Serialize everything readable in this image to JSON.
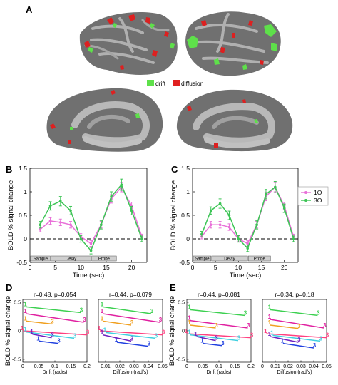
{
  "panel_labels": {
    "A": "A",
    "B": "B",
    "C": "C",
    "D": "D",
    "E": "E"
  },
  "brain_legend": {
    "drift_label": "drift",
    "diffusion_label": "diffusion",
    "drift_color": "#5ee04a",
    "diffusion_color": "#e02020"
  },
  "colors": {
    "load_1O": "#e870d8",
    "load_3O": "#3cc455",
    "cortex_dark": "#6e6e6e",
    "cortex_light": "#b4b4b4"
  },
  "timecourse": {
    "ylabel": "BOLD % signal change",
    "xlabel": "Time (sec)",
    "yticks": [
      "1.5",
      "1",
      "0.5",
      "0",
      "-0.5"
    ],
    "xticks": [
      "0",
      "5",
      "10",
      "15",
      "20"
    ],
    "segments": [
      "Sample",
      "Delay",
      "Probe"
    ]
  },
  "legend": {
    "series_1O": "1O",
    "series_3O": "3O"
  },
  "scatter": {
    "ylabel": "BOLD % signal change",
    "drift_xlabel": "Drift (rad/s)",
    "diffusion_xlabel": "Diffusion (rad/s)",
    "yticks": [
      "0.5",
      "0",
      "-0.5"
    ],
    "drift_xticks": [
      "0",
      "0.05",
      "0.1",
      "0.15",
      "0.2"
    ],
    "diffusion_xticks": [
      "0.01",
      "0.02",
      "0.03",
      "0.04",
      "0.05"
    ],
    "diffusion_xticks_e": [
      "0",
      "0.01",
      "0.02",
      "0.03",
      "0.04",
      "0.05"
    ],
    "D_drift_stat": "r=0.48, p=0.054",
    "D_diff_stat": "r=0.44, p=0.079",
    "E_drift_stat": "r=0.44, p=0.081",
    "E_diff_stat": "r=0.34, p=0.18"
  },
  "chart_data": [
    {
      "type": "line",
      "panel": "B",
      "xlabel": "Time (sec)",
      "ylabel": "BOLD % signal change",
      "xlim": [
        0,
        23
      ],
      "ylim": [
        -0.5,
        1.5
      ],
      "x": [
        2,
        4,
        6,
        8,
        10,
        12,
        14,
        16,
        18,
        20,
        22
      ],
      "series": [
        {
          "name": "1O",
          "values": [
            0.2,
            0.38,
            0.35,
            0.3,
            0.05,
            -0.1,
            0.3,
            0.85,
            1.1,
            0.7,
            0.05
          ],
          "err": [
            0.05,
            0.07,
            0.07,
            0.07,
            0.06,
            0.06,
            0.07,
            0.09,
            0.1,
            0.08,
            0.05
          ]
        },
        {
          "name": "3O",
          "values": [
            0.3,
            0.7,
            0.8,
            0.6,
            0.0,
            -0.25,
            0.3,
            0.9,
            1.15,
            0.6,
            0.0
          ],
          "err": [
            0.07,
            0.09,
            0.1,
            0.09,
            0.07,
            0.07,
            0.09,
            0.1,
            0.12,
            0.09,
            0.06
          ]
        }
      ]
    },
    {
      "type": "line",
      "panel": "C",
      "xlabel": "Time (sec)",
      "ylabel": "BOLD % signal change",
      "xlim": [
        0,
        23
      ],
      "ylim": [
        -0.5,
        1.5
      ],
      "x": [
        2,
        4,
        6,
        8,
        10,
        12,
        14,
        16,
        18,
        20,
        22
      ],
      "series": [
        {
          "name": "1O",
          "values": [
            0.05,
            0.3,
            0.3,
            0.25,
            0.0,
            -0.1,
            0.3,
            0.9,
            1.1,
            0.7,
            0.05
          ],
          "err": [
            0.05,
            0.07,
            0.07,
            0.07,
            0.06,
            0.06,
            0.07,
            0.09,
            0.1,
            0.08,
            0.05
          ]
        },
        {
          "name": "3O",
          "values": [
            0.1,
            0.6,
            0.75,
            0.5,
            0.0,
            -0.2,
            0.3,
            0.95,
            1.1,
            0.65,
            0.0
          ],
          "err": [
            0.06,
            0.08,
            0.1,
            0.09,
            0.07,
            0.07,
            0.09,
            0.1,
            0.12,
            0.09,
            0.06
          ]
        }
      ]
    },
    {
      "type": "scatter",
      "panel": "D-drift",
      "xlabel": "Drift (rad/s)",
      "xlim": [
        0,
        0.2
      ],
      "ylim": [
        -0.55,
        0.55
      ],
      "series": [
        {
          "name": "green",
          "x": [
            0.01,
            0.18
          ],
          "y": [
            0.42,
            0.32
          ]
        },
        {
          "name": "magenta",
          "x": [
            0.01,
            0.19
          ],
          "y": [
            0.3,
            0.15
          ]
        },
        {
          "name": "orange",
          "x": [
            0.01,
            0.09
          ],
          "y": [
            0.17,
            0.12
          ]
        },
        {
          "name": "pink",
          "x": [
            0.0,
            0.2
          ],
          "y": [
            0.0,
            -0.07
          ]
        },
        {
          "name": "cyan",
          "x": [
            0.01,
            0.16
          ],
          "y": [
            -0.02,
            -0.13
          ]
        },
        {
          "name": "blue",
          "x": [
            0.05,
            0.11
          ],
          "y": [
            -0.18,
            -0.22
          ]
        },
        {
          "name": "purple",
          "x": [
            0.03,
            0.09
          ],
          "y": [
            -0.06,
            -0.12
          ]
        }
      ]
    },
    {
      "type": "scatter",
      "panel": "D-diffusion",
      "xlabel": "Diffusion (rad/s)",
      "xlim": [
        0.005,
        0.05
      ],
      "ylim": [
        -0.55,
        0.55
      ],
      "series": [
        {
          "name": "green",
          "x": [
            0.008,
            0.042
          ],
          "y": [
            0.42,
            0.3
          ]
        },
        {
          "name": "magenta",
          "x": [
            0.008,
            0.048
          ],
          "y": [
            0.3,
            0.15
          ]
        },
        {
          "name": "orange",
          "x": [
            0.008,
            0.028
          ],
          "y": [
            0.17,
            0.1
          ]
        },
        {
          "name": "pink",
          "x": [
            0.006,
            0.05
          ],
          "y": [
            0.0,
            -0.07
          ]
        },
        {
          "name": "cyan",
          "x": [
            0.01,
            0.045
          ],
          "y": [
            -0.03,
            -0.13
          ]
        },
        {
          "name": "blue",
          "x": [
            0.018,
            0.04
          ],
          "y": [
            -0.2,
            -0.27
          ]
        },
        {
          "name": "purple",
          "x": [
            0.008,
            0.028
          ],
          "y": [
            -0.07,
            -0.18
          ]
        }
      ]
    },
    {
      "type": "scatter",
      "panel": "E-drift",
      "xlabel": "Drift (rad/s)",
      "xlim": [
        0,
        0.2
      ],
      "ylim": [
        -0.55,
        0.55
      ],
      "series": [
        {
          "name": "green",
          "x": [
            0.01,
            0.18
          ],
          "y": [
            0.37,
            0.27
          ]
        },
        {
          "name": "magenta",
          "x": [
            0.01,
            0.19
          ],
          "y": [
            0.18,
            0.05
          ]
        },
        {
          "name": "orange",
          "x": [
            0.01,
            0.09
          ],
          "y": [
            0.1,
            0.05
          ]
        },
        {
          "name": "pink",
          "x": [
            0.0,
            0.2
          ],
          "y": [
            -0.05,
            -0.12
          ]
        },
        {
          "name": "cyan",
          "x": [
            0.01,
            0.16
          ],
          "y": [
            -0.07,
            -0.17
          ]
        },
        {
          "name": "blue",
          "x": [
            0.05,
            0.11
          ],
          "y": [
            -0.22,
            -0.26
          ]
        },
        {
          "name": "purple",
          "x": [
            0.03,
            0.09
          ],
          "y": [
            -0.1,
            -0.17
          ]
        }
      ]
    },
    {
      "type": "scatter",
      "panel": "E-diffusion",
      "xlabel": "Diffusion (rad/s)",
      "xlim": [
        0,
        0.05
      ],
      "ylim": [
        -0.55,
        0.55
      ],
      "series": [
        {
          "name": "green",
          "x": [
            0.006,
            0.043
          ],
          "y": [
            0.37,
            0.27
          ]
        },
        {
          "name": "magenta",
          "x": [
            0.006,
            0.048
          ],
          "y": [
            0.2,
            0.05
          ]
        },
        {
          "name": "orange",
          "x": [
            0.006,
            0.028
          ],
          "y": [
            0.1,
            0.04
          ]
        },
        {
          "name": "pink",
          "x": [
            0.003,
            0.05
          ],
          "y": [
            -0.05,
            -0.12
          ]
        },
        {
          "name": "cyan",
          "x": [
            0.008,
            0.045
          ],
          "y": [
            -0.08,
            -0.18
          ]
        },
        {
          "name": "blue",
          "x": [
            0.016,
            0.04
          ],
          "y": [
            -0.22,
            -0.3
          ]
        },
        {
          "name": "purple",
          "x": [
            0.006,
            0.028
          ],
          "y": [
            -0.1,
            -0.2
          ]
        }
      ]
    }
  ]
}
